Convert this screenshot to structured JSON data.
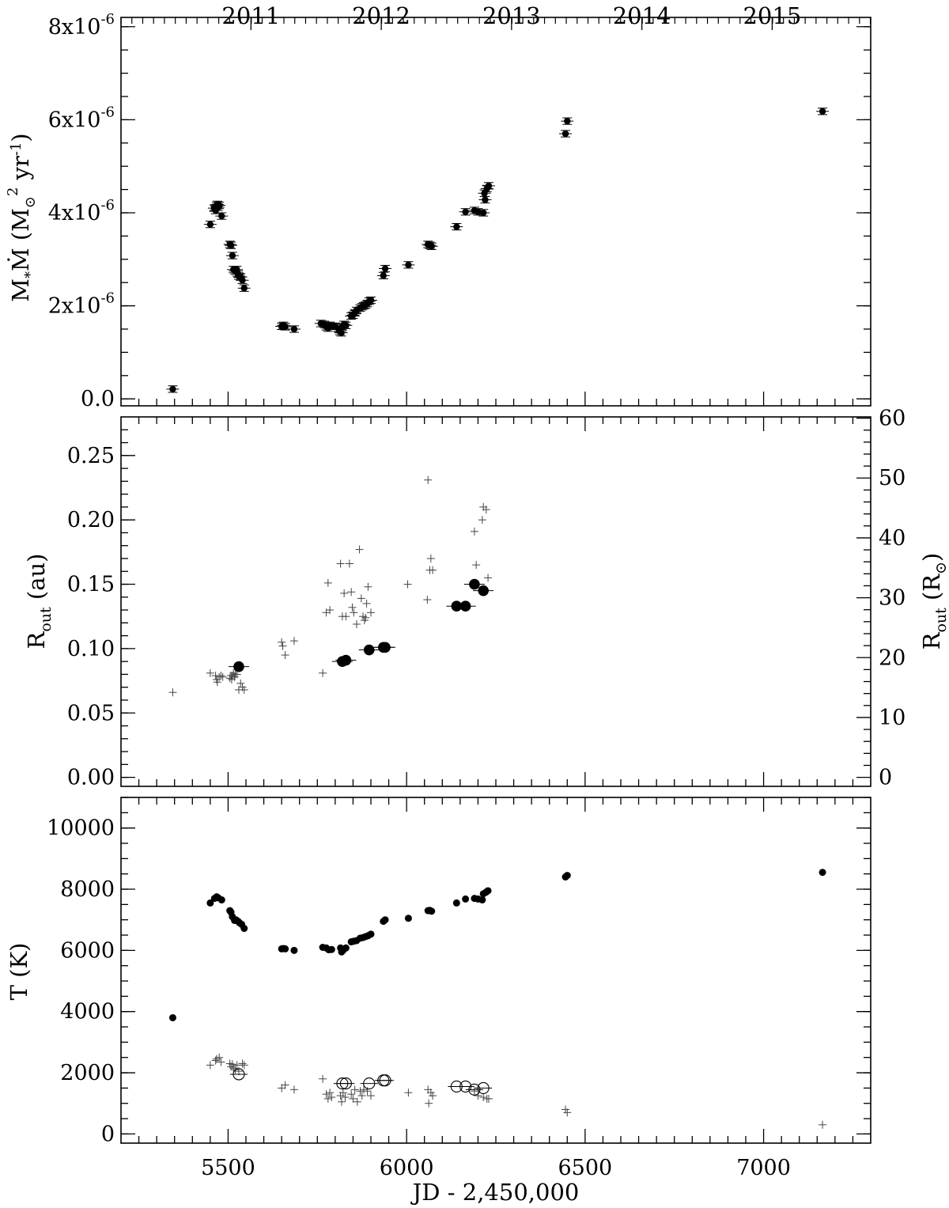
{
  "chart_data": [
    {
      "type": "scatter",
      "panel": "top",
      "ylabel": "M*Ṁ (M⊙² yr⁻¹)",
      "ytick_labels": [
        "0.0",
        "2x10",
        "4x10",
        "6x10",
        "8x10"
      ],
      "ytick_exponent": "-6",
      "ytick_values": [
        0,
        2e-06,
        4e-06,
        6e-06,
        8e-06
      ],
      "ylim": [
        -1.5e-07,
        8.2e-06
      ],
      "xlim": [
        5200,
        7300
      ],
      "top_axis_years": [
        "2011",
        "2012",
        "2013",
        "2014",
        "2015"
      ],
      "top_axis_year_jd": [
        5564,
        5929,
        6294,
        6659,
        7024
      ],
      "series": [
        {
          "marker": "filled-circle-errorbar",
          "x": [
            5345,
            5450,
            5461,
            5465,
            5468,
            5470,
            5472,
            5475,
            5482,
            5505,
            5508,
            5512,
            5515,
            5520,
            5524,
            5528,
            5530,
            5535,
            5540,
            5545,
            5650,
            5655,
            5660,
            5685,
            5760,
            5770,
            5775,
            5780,
            5785,
            5790,
            5800,
            5810,
            5813,
            5817,
            5820,
            5825,
            5830,
            5845,
            5850,
            5855,
            5860,
            5870,
            5875,
            5880,
            5885,
            5890,
            5895,
            5900,
            5935,
            5940,
            6005,
            6060,
            6065,
            6070,
            6140,
            6165,
            6190,
            6200,
            6215,
            6218,
            6220,
            6225,
            6230,
            6445,
            6450,
            7165
          ],
          "y": [
            2.1e-07,
            3.75e-06,
            4.1e-06,
            4.05e-06,
            4.15e-06,
            4.18e-06,
            4.12e-06,
            4.16e-06,
            3.93e-06,
            3.32e-06,
            3.3e-06,
            3.08e-06,
            2.78e-06,
            2.75e-06,
            2.78e-06,
            2.68e-06,
            2.64e-06,
            2.62e-06,
            2.55e-06,
            2.38e-06,
            1.56e-06,
            1.58e-06,
            1.55e-06,
            1.5e-06,
            1.62e-06,
            1.6e-06,
            1.55e-06,
            1.52e-06,
            1.58e-06,
            1.56e-06,
            1.56e-06,
            1.5e-06,
            1.45e-06,
            1.42e-06,
            1.55e-06,
            1.6e-06,
            1.58e-06,
            1.78e-06,
            1.8e-06,
            1.85e-06,
            1.9e-06,
            1.95e-06,
            1.98e-06,
            2e-06,
            2.02e-06,
            2.05e-06,
            2.1e-06,
            2.12e-06,
            2.65e-06,
            2.8e-06,
            2.88e-06,
            3.32e-06,
            3.3e-06,
            3.28e-06,
            3.7e-06,
            4.02e-06,
            4.05e-06,
            4.02e-06,
            4e-06,
            4.42e-06,
            4.28e-06,
            4.52e-06,
            4.58e-06,
            5.7e-06,
            5.97e-06,
            6.18e-06
          ],
          "yerr": 7e-08
        }
      ]
    },
    {
      "type": "scatter",
      "panel": "middle",
      "ylabel": "R_out (au)",
      "ylabel_right": "R_out (R⊙)",
      "ytick_labels": [
        "0.00",
        "0.05",
        "0.10",
        "0.15",
        "0.20",
        "0.25"
      ],
      "ytick_values": [
        0,
        0.05,
        0.1,
        0.15,
        0.2,
        0.25
      ],
      "ylim": [
        -0.007,
        0.28
      ],
      "ytick_labels_right": [
        "0",
        "10",
        "20",
        "30",
        "40",
        "50",
        "60"
      ],
      "ytick_values_right": [
        0,
        10,
        20,
        30,
        40,
        50,
        60
      ],
      "xlim": [
        5200,
        7300
      ],
      "series": [
        {
          "marker": "plus",
          "x": [
            5345,
            5450,
            5465,
            5468,
            5470,
            5475,
            5480,
            5485,
            5505,
            5508,
            5510,
            5512,
            5515,
            5518,
            5520,
            5525,
            5530,
            5535,
            5540,
            5545,
            5650,
            5653,
            5660,
            5685,
            5765,
            5775,
            5780,
            5785,
            5815,
            5820,
            5825,
            5830,
            5840,
            5845,
            5848,
            5852,
            5860,
            5868,
            5873,
            5878,
            5882,
            5885,
            5888,
            5892,
            5900,
            6003,
            6058,
            6060,
            6065,
            6068,
            6073,
            6190,
            6195,
            6212,
            6215,
            6223,
            6228
          ],
          "y": [
            0.066,
            0.081,
            0.079,
            0.076,
            0.074,
            0.078,
            0.079,
            0.078,
            0.077,
            0.079,
            0.076,
            0.079,
            0.081,
            0.078,
            0.08,
            0.08,
            0.068,
            0.073,
            0.07,
            0.068,
            0.105,
            0.102,
            0.095,
            0.106,
            0.081,
            0.128,
            0.151,
            0.13,
            0.166,
            0.125,
            0.143,
            0.125,
            0.166,
            0.144,
            0.132,
            0.128,
            0.119,
            0.177,
            0.139,
            0.125,
            0.122,
            0.124,
            0.135,
            0.148,
            0.128,
            0.15,
            0.138,
            0.231,
            0.161,
            0.17,
            0.161,
            0.191,
            0.165,
            0.2,
            0.21,
            0.208,
            0.155
          ]
        },
        {
          "marker": "large-filled-circle",
          "x": [
            5530,
            5820,
            5830,
            5895,
            5935,
            5940,
            6140,
            6165,
            6190,
            6215
          ],
          "y": [
            0.086,
            0.09,
            0.091,
            0.099,
            0.101,
            0.101,
            0.133,
            0.133,
            0.15,
            0.145
          ]
        }
      ]
    },
    {
      "type": "scatter",
      "panel": "bottom",
      "ylabel": "T (K)",
      "xlabel": "JD - 2,450,000",
      "ytick_labels": [
        "0",
        "2000",
        "4000",
        "6000",
        "8000",
        "10000"
      ],
      "ytick_values": [
        0,
        2000,
        4000,
        6000,
        8000,
        10000
      ],
      "ylim": [
        -300,
        11000
      ],
      "xtick_labels": [
        "5500",
        "6000",
        "6500",
        "7000"
      ],
      "xtick_values": [
        5500,
        6000,
        6500,
        7000
      ],
      "xlim": [
        5200,
        7300
      ],
      "series": [
        {
          "marker": "filled-circle",
          "x": [
            5345,
            5450,
            5462,
            5468,
            5472,
            5482,
            5505,
            5508,
            5512,
            5518,
            5522,
            5528,
            5532,
            5538,
            5545,
            5650,
            5655,
            5660,
            5685,
            5765,
            5775,
            5782,
            5790,
            5815,
            5818,
            5822,
            5830,
            5845,
            5852,
            5860,
            5870,
            5878,
            5885,
            5892,
            5900,
            5935,
            5940,
            6005,
            6060,
            6065,
            6070,
            6140,
            6165,
            6190,
            6200,
            6212,
            6215,
            6222,
            6228,
            6445,
            6450,
            7165
          ],
          "y": [
            3800,
            7550,
            7700,
            7750,
            7720,
            7650,
            7300,
            7250,
            7100,
            6980,
            7000,
            6950,
            6900,
            6850,
            6720,
            6050,
            6060,
            6050,
            6000,
            6100,
            6080,
            6020,
            6030,
            6080,
            5950,
            6000,
            6080,
            6280,
            6300,
            6320,
            6400,
            6420,
            6450,
            6480,
            6530,
            6950,
            7000,
            7050,
            7300,
            7310,
            7280,
            7550,
            7680,
            7700,
            7680,
            7650,
            7850,
            7900,
            7950,
            8400,
            8450,
            8550
          ]
        },
        {
          "marker": "plus",
          "x": [
            5450,
            5465,
            5468,
            5475,
            5480,
            5505,
            5508,
            5512,
            5515,
            5520,
            5525,
            5530,
            5540,
            5545,
            5650,
            5660,
            5685,
            5765,
            5775,
            5780,
            5785,
            5790,
            5815,
            5818,
            5822,
            5828,
            5845,
            5850,
            5855,
            5862,
            5870,
            5875,
            5880,
            5890,
            5900,
            6005,
            6060,
            6062,
            6068,
            6073,
            6190,
            6200,
            6215,
            6225,
            6230,
            6445,
            6450,
            7165
          ],
          "y": [
            2250,
            2400,
            2450,
            2500,
            2350,
            2300,
            2200,
            2280,
            2150,
            2100,
            2250,
            2050,
            2300,
            2250,
            1500,
            1600,
            1450,
            1800,
            1300,
            1150,
            1350,
            1200,
            1250,
            1050,
            1350,
            1200,
            1300,
            1150,
            1450,
            1050,
            1400,
            1250,
            1450,
            1400,
            1250,
            1350,
            1450,
            1000,
            1350,
            1250,
            1400,
            1250,
            1200,
            1150,
            1150,
            800,
            700,
            300
          ]
        },
        {
          "marker": "open-circle",
          "x": [
            5530,
            5820,
            5830,
            5895,
            5935,
            5940,
            6140,
            6165,
            6190,
            6215
          ],
          "y": [
            1950,
            1650,
            1650,
            1650,
            1750,
            1750,
            1550,
            1550,
            1450,
            1500
          ]
        }
      ]
    }
  ]
}
